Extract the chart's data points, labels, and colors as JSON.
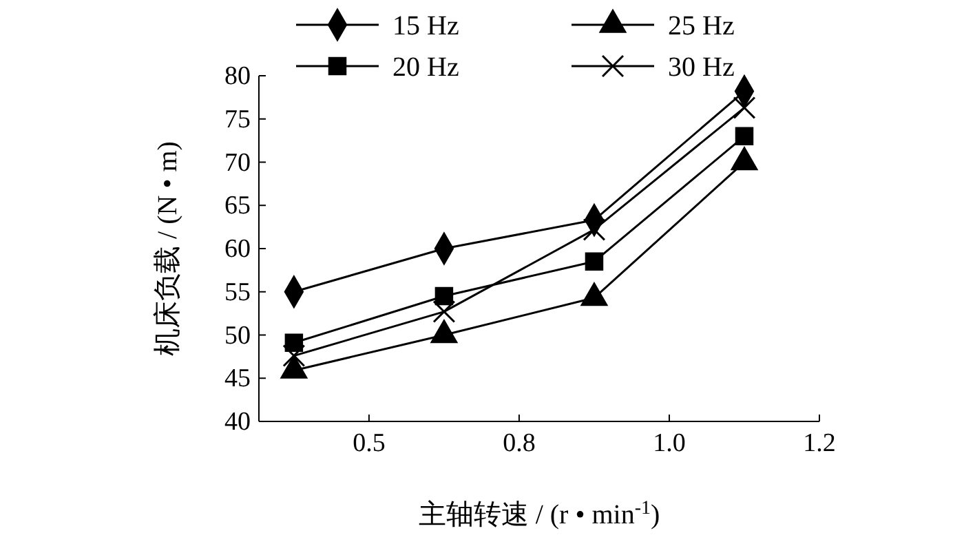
{
  "chart_data": {
    "type": "line",
    "xlabel": "主轴转速 / (r • min$^{-1}$)",
    "ylabel": "机床负载 / (N • m)",
    "categories": [
      null,
      "0.5",
      null,
      "0.8",
      null,
      "1.0",
      null,
      "1.2"
    ],
    "ylim": [
      40,
      80
    ],
    "yticks": [
      40,
      45,
      50,
      55,
      60,
      65,
      70,
      75,
      80
    ],
    "grid": false,
    "legend": "top",
    "series": [
      {
        "name": "15 Hz",
        "color": "#000000",
        "marker": "diamond",
        "values": [
          55,
          null,
          60,
          null,
          63.3,
          null,
          78.2,
          null
        ]
      },
      {
        "name": "20 Hz",
        "color": "#000000",
        "marker": "square",
        "values": [
          49.1,
          null,
          54.5,
          null,
          58.5,
          null,
          73,
          null
        ]
      },
      {
        "name": "25 Hz",
        "color": "#000000",
        "marker": "triangle",
        "values": [
          45.9,
          null,
          50,
          null,
          54.3,
          null,
          70,
          null
        ]
      },
      {
        "name": "30 Hz",
        "color": "#000000",
        "marker": "cross",
        "values": [
          47.6,
          null,
          52.7,
          null,
          62.2,
          null,
          76.3,
          null
        ]
      }
    ]
  }
}
